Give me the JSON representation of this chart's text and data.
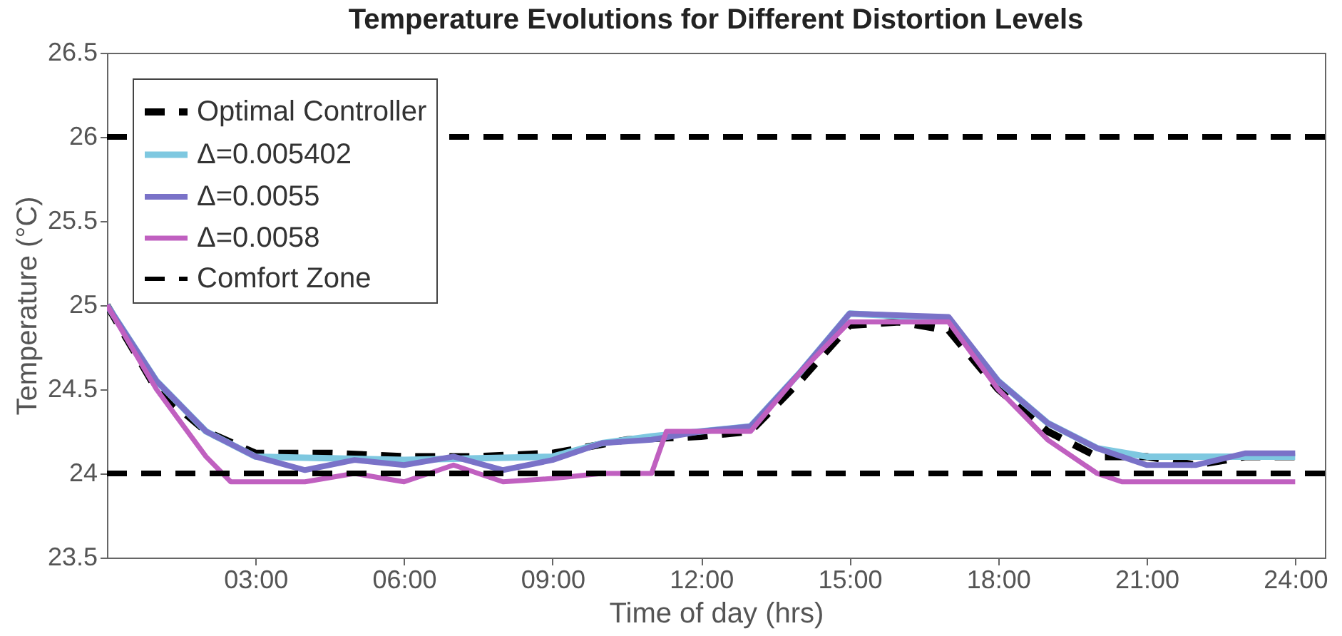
{
  "chart_data": {
    "type": "line",
    "title": "Temperature Evolutions for Different Distortion Levels",
    "xlabel": "Time of day (hrs)",
    "ylabel": "Temperature (°C)",
    "xlim": [
      0,
      24.6
    ],
    "xticks": [
      {
        "value": 3,
        "label": "03:00"
      },
      {
        "value": 6,
        "label": "06:00"
      },
      {
        "value": 9,
        "label": "09:00"
      },
      {
        "value": 12,
        "label": "12:00"
      },
      {
        "value": 15,
        "label": "15:00"
      },
      {
        "value": 18,
        "label": "18:00"
      },
      {
        "value": 21,
        "label": "21:00"
      },
      {
        "value": 24,
        "label": "24:00"
      }
    ],
    "ylim": [
      23.5,
      26.5
    ],
    "yticks": [
      23.5,
      24,
      24.5,
      25,
      25.5,
      26,
      26.5
    ],
    "grid": false,
    "legend": "top left",
    "marker": "none",
    "series": [
      {
        "name": "Optimal Controller",
        "color": "#000000",
        "line_style": "dashed",
        "x": [
          0,
          1,
          2,
          3,
          4.5,
          6,
          7.5,
          9,
          10.5,
          12,
          13,
          14,
          15,
          16,
          17,
          18,
          19,
          20,
          21,
          22,
          23,
          24
        ],
        "values": [
          25,
          24.5,
          24.25,
          24.12,
          24.12,
          24.1,
          24.1,
          24.12,
          24.2,
          24.22,
          24.25,
          24.55,
          24.88,
          24.9,
          24.85,
          24.5,
          24.25,
          24.1,
          24.1,
          24.05,
          24.1,
          24.1
        ]
      },
      {
        "name": "Δ=0.005402",
        "color": "#7ec8e0",
        "x": [
          0,
          1,
          2,
          3,
          6,
          9,
          10,
          11,
          12,
          13,
          14,
          15,
          17,
          18,
          19,
          20,
          21,
          22,
          23,
          24
        ],
        "values": [
          25,
          24.55,
          24.25,
          24.1,
          24.08,
          24.1,
          24.18,
          24.22,
          24.25,
          24.28,
          24.6,
          24.95,
          24.92,
          24.55,
          24.3,
          24.15,
          24.1,
          24.1,
          24.1,
          24.1
        ]
      },
      {
        "name": "Δ=0.0055",
        "color": "#7a72c8",
        "x": [
          0,
          1,
          2,
          3,
          4,
          5,
          6,
          7,
          8,
          9,
          10,
          11,
          12,
          13,
          14,
          15,
          17,
          18,
          19,
          20,
          21,
          22,
          23,
          24
        ],
        "values": [
          25,
          24.55,
          24.25,
          24.1,
          24.02,
          24.08,
          24.05,
          24.1,
          24.02,
          24.08,
          24.18,
          24.2,
          24.25,
          24.28,
          24.6,
          24.95,
          24.93,
          24.55,
          24.3,
          24.15,
          24.05,
          24.05,
          24.12,
          24.12
        ]
      },
      {
        "name": "Δ=0.0058",
        "color": "#c060c0",
        "x": [
          0,
          1,
          2,
          2.5,
          4,
          5,
          6,
          7,
          8,
          9,
          10,
          11,
          11.3,
          12,
          13,
          14,
          15,
          17,
          18,
          19,
          20,
          20.5,
          22,
          24
        ],
        "values": [
          25,
          24.5,
          24.1,
          23.95,
          23.95,
          24,
          23.95,
          24.05,
          23.95,
          23.97,
          24,
          24,
          24.25,
          24.25,
          24.25,
          24.6,
          24.9,
          24.9,
          24.5,
          24.2,
          24,
          23.95,
          23.95,
          23.95
        ]
      }
    ],
    "ref_lines": [
      {
        "axis": "y",
        "value": 26,
        "label": "Comfort Zone",
        "color": "#000000",
        "line_style": "dashed"
      },
      {
        "axis": "y",
        "value": 24,
        "color": "#000000",
        "line_style": "dashed"
      }
    ]
  }
}
